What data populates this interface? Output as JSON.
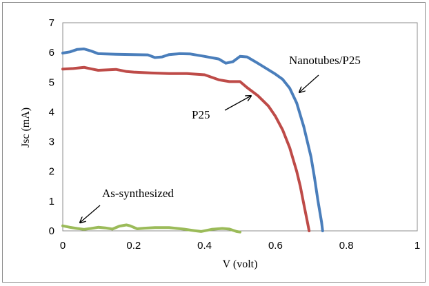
{
  "chart_data": {
    "type": "line",
    "title": "",
    "xlabel": "V (volt)",
    "ylabel": "Jsc (mA)",
    "xlim": [
      0,
      1
    ],
    "ylim": [
      0,
      7
    ],
    "x_ticks": [
      "0",
      "0.2",
      "0.4",
      "0.6",
      "0.8",
      "1"
    ],
    "y_ticks": [
      "0",
      "1",
      "2",
      "3",
      "4",
      "5",
      "6",
      "7"
    ],
    "grid": false,
    "legend": "none (curves labelled by arrow annotations)",
    "series": [
      {
        "name": "Nanotubes/P25",
        "color": "#4a7ebb",
        "x": [
          0,
          0.02,
          0.04,
          0.06,
          0.08,
          0.1,
          0.15,
          0.2,
          0.24,
          0.26,
          0.28,
          0.3,
          0.33,
          0.36,
          0.4,
          0.44,
          0.46,
          0.48,
          0.5,
          0.52,
          0.55,
          0.58,
          0.6,
          0.62,
          0.64,
          0.66,
          0.68,
          0.7,
          0.71,
          0.72,
          0.73,
          0.733
        ],
        "y": [
          5.98,
          6.02,
          6.1,
          6.12,
          6.05,
          5.96,
          5.94,
          5.93,
          5.92,
          5.83,
          5.85,
          5.93,
          5.96,
          5.95,
          5.87,
          5.78,
          5.64,
          5.69,
          5.87,
          5.85,
          5.64,
          5.42,
          5.27,
          5.1,
          4.8,
          4.3,
          3.5,
          2.5,
          1.8,
          1.0,
          0.3,
          0
        ]
      },
      {
        "name": "P25",
        "color": "#be4b48",
        "x": [
          0,
          0.03,
          0.06,
          0.08,
          0.1,
          0.13,
          0.15,
          0.18,
          0.2,
          0.25,
          0.3,
          0.35,
          0.4,
          0.44,
          0.47,
          0.5,
          0.52,
          0.55,
          0.58,
          0.6,
          0.62,
          0.64,
          0.66,
          0.67,
          0.68,
          0.69,
          0.695
        ],
        "y": [
          5.44,
          5.46,
          5.5,
          5.45,
          5.4,
          5.42,
          5.43,
          5.36,
          5.34,
          5.31,
          5.29,
          5.29,
          5.25,
          5.08,
          5.02,
          5.02,
          4.82,
          4.55,
          4.2,
          3.85,
          3.4,
          2.8,
          2.0,
          1.5,
          0.9,
          0.3,
          0
        ]
      },
      {
        "name": "As-synthesized",
        "color": "#9bbb59",
        "x": [
          0,
          0.02,
          0.04,
          0.06,
          0.08,
          0.1,
          0.12,
          0.14,
          0.16,
          0.18,
          0.19,
          0.21,
          0.23,
          0.26,
          0.3,
          0.34,
          0.37,
          0.39,
          0.42,
          0.45,
          0.47,
          0.49,
          0.5
        ],
        "y": [
          0.17,
          0.12,
          0.08,
          0.05,
          0.08,
          0.12,
          0.1,
          0.06,
          0.16,
          0.2,
          0.17,
          0.07,
          0.09,
          0.11,
          0.11,
          0.06,
          0.01,
          -0.02,
          0.05,
          0.08,
          0.06,
          -0.02,
          -0.04
        ]
      }
    ],
    "annotations": [
      {
        "text": "Nanotubes/P25",
        "points_to": "Nanotubes/P25"
      },
      {
        "text": "P25",
        "points_to": "P25"
      },
      {
        "text": "As-synthesized",
        "points_to": "As-synthesized"
      }
    ]
  }
}
